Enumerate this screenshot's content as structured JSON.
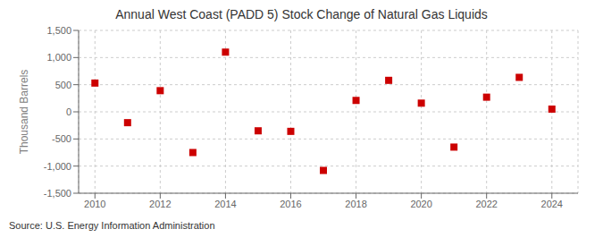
{
  "chart_data": {
    "type": "scatter",
    "title": "Annual West Coast (PADD 5) Stock Change of Natural Gas Liquids",
    "y_label": "Thousand Barrels",
    "annotation": "Source: U.S. Energy Information Administration",
    "x": [
      2010,
      2011,
      2012,
      2013,
      2014,
      2015,
      2016,
      2017,
      2018,
      2019,
      2020,
      2021,
      2022,
      2023,
      2024
    ],
    "values": [
      530,
      -200,
      390,
      -750,
      1100,
      -350,
      -360,
      -1080,
      210,
      580,
      160,
      -650,
      270,
      635,
      50
    ],
    "color": "#cc0000",
    "marker": "square",
    "xlim": [
      2009.5,
      2024.8
    ],
    "xticks": [
      2010,
      2012,
      2014,
      2016,
      2018,
      2020,
      2022,
      2024
    ],
    "ylim": [
      -1500,
      1500
    ],
    "yticks": [
      {
        "value": -1500,
        "label": "-1,500"
      },
      {
        "value": -1000,
        "label": "-1,000"
      },
      -500,
      0,
      500,
      {
        "value": 1000,
        "label": "1,000"
      },
      {
        "value": 1500,
        "label": "1,500"
      }
    ],
    "grid": true
  }
}
